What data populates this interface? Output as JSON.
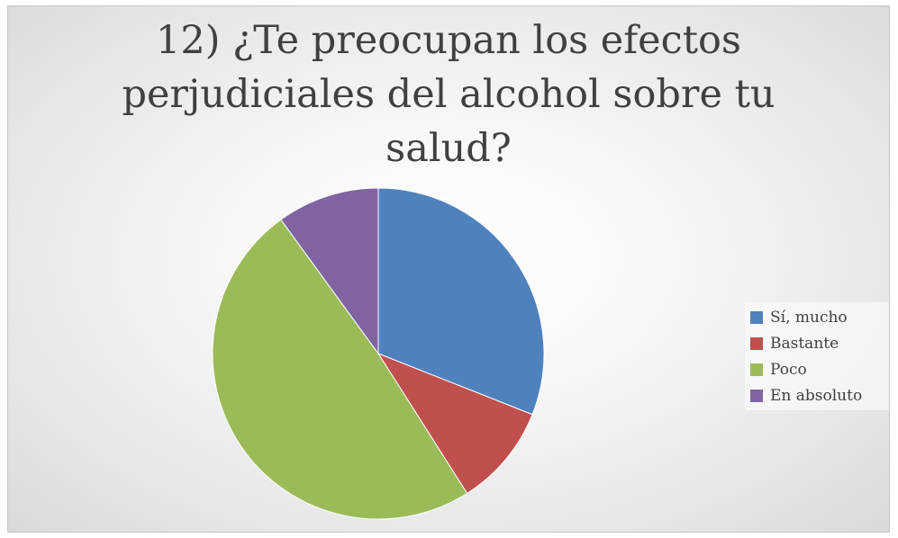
{
  "chart_data": {
    "type": "pie",
    "title_lines": [
      "12) ¿Te preocupan los efectos",
      "perjudiciales del alcohol sobre tu",
      "salud?"
    ],
    "categories": [
      "Sí, mucho",
      "Bastante",
      "Poco",
      "En absoluto"
    ],
    "values": [
      31,
      10,
      49,
      10
    ],
    "colors": [
      "#4F81BD",
      "#C0504D",
      "#9BBB59",
      "#8064A2"
    ],
    "legend_position": "right",
    "start_angle_deg": 0,
    "direction": "clockwise"
  }
}
